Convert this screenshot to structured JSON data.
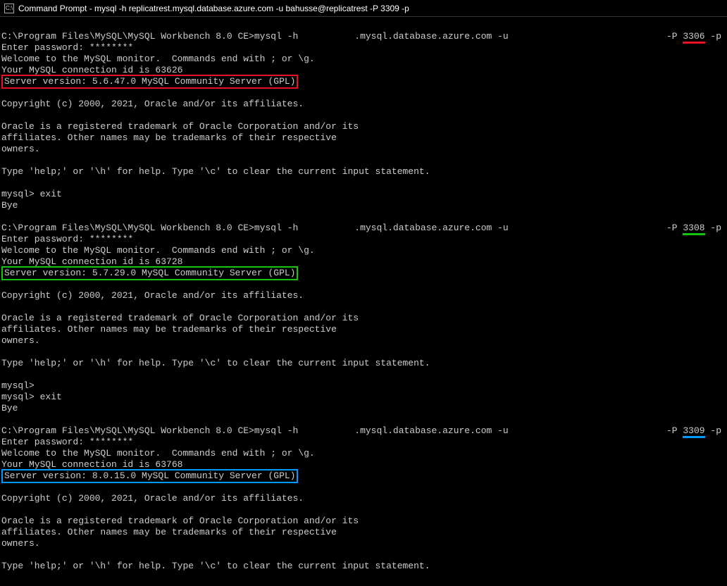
{
  "window": {
    "title": "Command Prompt - mysql  -h replicatrest.mysql.database.azure.com -u bahusse@replicatrest -P 3309 -p",
    "icon_label": "C:\\"
  },
  "sessions": [
    {
      "cmd_prefix": "C:\\Program Files\\MySQL\\MySQL Workbench 8.0 CE>mysql -h",
      "cmd_suffix": ".mysql.database.azure.com -u",
      "port_flag": "-P ",
      "port": "3306",
      "port_suffix": " -p",
      "port_underline_color": "ul-red",
      "password_line": "Enter password: ********",
      "welcome": "Welcome to the MySQL monitor.  Commands end with ; or \\g.",
      "conn_id": "Your MySQL connection id is 63626",
      "version_line": "Server version: 5.6.47.0 MySQL Community Server (GPL)",
      "version_box_color": "box-red",
      "copyright": "Copyright (c) 2000, 2021, Oracle and/or its affiliates.",
      "trademark1": "Oracle is a registered trademark of Oracle Corporation and/or its",
      "trademark2": "affiliates. Other names may be trademarks of their respective",
      "trademark3": "owners.",
      "help": "Type 'help;' or '\\h' for help. Type '\\c' to clear the current input statement.",
      "exit1": "mysql> exit",
      "exit2": "Bye",
      "extra_prompt": ""
    },
    {
      "cmd_prefix": "C:\\Program Files\\MySQL\\MySQL Workbench 8.0 CE>mysql -h",
      "cmd_suffix": ".mysql.database.azure.com -u",
      "port_flag": "-P ",
      "port": "3308",
      "port_suffix": " -p",
      "port_underline_color": "ul-green",
      "password_line": "Enter password: ********",
      "welcome": "Welcome to the MySQL monitor.  Commands end with ; or \\g.",
      "conn_id": "Your MySQL connection id is 63728",
      "version_line": "Server version: 5.7.29.0 MySQL Community Server (GPL)",
      "version_box_color": "box-green",
      "copyright": "Copyright (c) 2000, 2021, Oracle and/or its affiliates.",
      "trademark1": "Oracle is a registered trademark of Oracle Corporation and/or its",
      "trademark2": "affiliates. Other names may be trademarks of their respective",
      "trademark3": "owners.",
      "help": "Type 'help;' or '\\h' for help. Type '\\c' to clear the current input statement.",
      "extra_prompt": "mysql>",
      "exit1": "mysql> exit",
      "exit2": "Bye"
    },
    {
      "cmd_prefix": "C:\\Program Files\\MySQL\\MySQL Workbench 8.0 CE>mysql -h",
      "cmd_suffix": ".mysql.database.azure.com -u",
      "port_flag": "-P ",
      "port": "3309",
      "port_suffix": " -p",
      "port_underline_color": "ul-blue",
      "password_line": "Enter password: ********",
      "welcome": "Welcome to the MySQL monitor.  Commands end with ; or \\g.",
      "conn_id": "Your MySQL connection id is 63768",
      "version_line": "Server version: 8.0.15.0 MySQL Community Server (GPL)",
      "version_box_color": "box-blue",
      "copyright": "Copyright (c) 2000, 2021, Oracle and/or its affiliates.",
      "trademark1": "Oracle is a registered trademark of Oracle Corporation and/or its",
      "trademark2": "affiliates. Other names may be trademarks of their respective",
      "trademark3": "owners.",
      "help": "Type 'help;' or '\\h' for help. Type '\\c' to clear the current input statement.",
      "extra_prompt": "",
      "exit1": "",
      "exit2": ""
    }
  ],
  "annotations": {
    "highlight_colors": {
      "red": "#e81123",
      "green": "#16c60c",
      "blue": "#0099ff"
    }
  }
}
